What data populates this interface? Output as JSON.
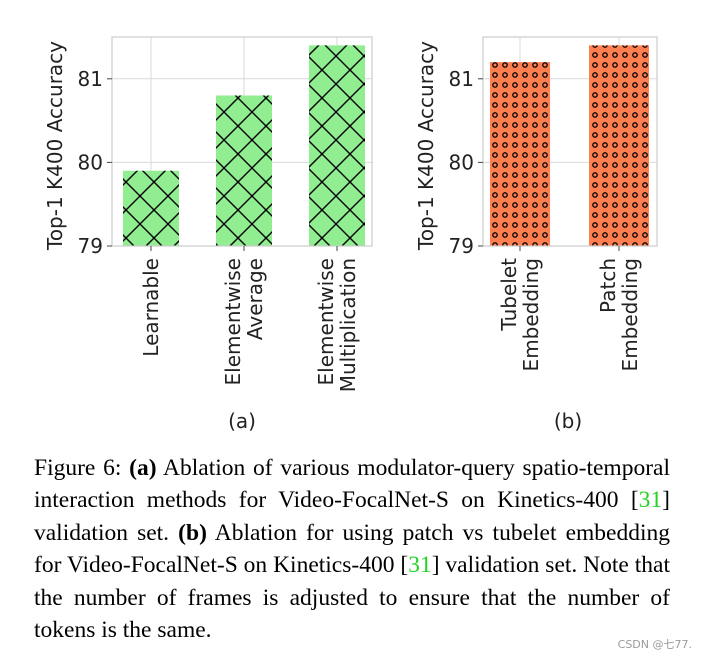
{
  "chart_data": [
    {
      "type": "bar",
      "panel_label": "(a)",
      "ylabel": "Top-1 K400 Accuracy",
      "categories": [
        [
          "Learnable"
        ],
        [
          "Elementwise",
          "Average"
        ],
        [
          "Elementwise",
          "Multiplication"
        ]
      ],
      "values": [
        79.9,
        80.8,
        81.4
      ],
      "ylim": [
        79,
        81.5
      ],
      "yticks": [
        "79",
        "80",
        "81"
      ],
      "bar_color": "#90ee90",
      "hatch": "x",
      "grid": true
    },
    {
      "type": "bar",
      "panel_label": "(b)",
      "ylabel": "Top-1 K400 Accuracy",
      "categories": [
        [
          "Tubelet",
          "Embedding"
        ],
        [
          "Patch",
          "Embedding"
        ]
      ],
      "values": [
        81.2,
        81.4
      ],
      "ylim": [
        79,
        81.5
      ],
      "yticks": [
        "79",
        "80",
        "81"
      ],
      "bar_color": "#ff7f50",
      "hatch": "o",
      "grid": true
    }
  ],
  "caption": {
    "figure_label": "Figure 6:",
    "part_a_label": "(a)",
    "part_a_text": "Ablation of various modulator-query spatio-temporal interaction methods for Video-FocalNet-S on Kinetics-400 [",
    "ref_1": "31",
    "part_a_end": "] validation set.",
    "part_b_label": "(b)",
    "part_b_text": "Ablation for using patch vs tubelet embedding for Video-FocalNet-S on Kinetics-400 [",
    "ref_2": "31",
    "part_b_end": "] validation set. Note that the number of frames is adjusted to ensure that the number of tokens is the same."
  },
  "watermark": "CSDN @七77."
}
